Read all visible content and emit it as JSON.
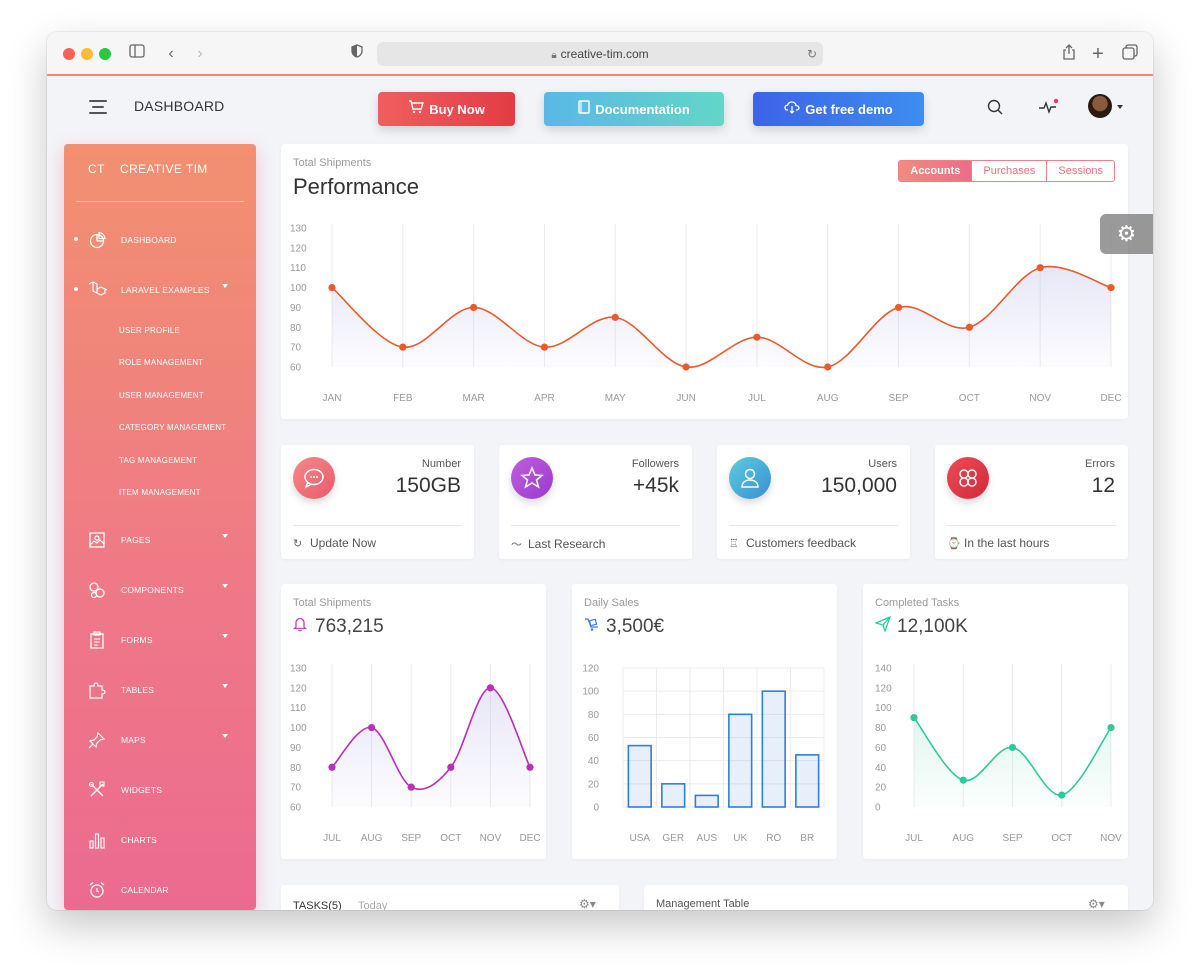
{
  "browser": {
    "url": "creative-tim.com"
  },
  "topnav": {
    "title": "DASHBOARD",
    "buy_now": "Buy Now",
    "documentation": "Documentation",
    "get_free_demo": "Get free demo",
    "colors": {
      "buy": "#e5474b",
      "docs": "#4fc7d9",
      "demo": "#3a6ef0"
    }
  },
  "sidebar": {
    "logo_short": "CT",
    "brand": "CREATIVE TIM",
    "items": [
      {
        "label": "DASHBOARD",
        "icon": "chart-pie-icon",
        "active": true
      },
      {
        "label": "LARAVEL EXAMPLES",
        "icon": "laravel-icon",
        "active": true,
        "expandable": true
      },
      {
        "label": "PAGES",
        "icon": "image-icon",
        "expandable": true
      },
      {
        "label": "COMPONENTS",
        "icon": "components-icon",
        "expandable": true
      },
      {
        "label": "FORMS",
        "icon": "clipboard-icon",
        "expandable": true
      },
      {
        "label": "TABLES",
        "icon": "puzzle-icon",
        "expandable": true
      },
      {
        "label": "MAPS",
        "icon": "pin-icon",
        "expandable": true
      },
      {
        "label": "WIDGETS",
        "icon": "tools-icon"
      },
      {
        "label": "CHARTS",
        "icon": "bar-chart-icon"
      },
      {
        "label": "CALENDAR",
        "icon": "alarm-clock-icon"
      }
    ],
    "subitems": [
      "USER PROFILE",
      "ROLE MANAGEMENT",
      "USER MANAGEMENT",
      "CATEGORY MANAGEMENT",
      "TAG MANAGEMENT",
      "ITEM MANAGEMENT"
    ]
  },
  "performance": {
    "subtitle": "Total Shipments",
    "title": "Performance",
    "tabs": [
      "Accounts",
      "Purchases",
      "Sessions"
    ],
    "active_tab": "Accounts"
  },
  "stats": [
    {
      "label": "Number",
      "value": "150GB",
      "footer": "Update Now",
      "icon": "chat-icon",
      "footer_icon": "refresh-icon",
      "color": "#ee6a78"
    },
    {
      "label": "Followers",
      "value": "+45k",
      "footer": "Last Research",
      "icon": "star-icon",
      "footer_icon": "pulse-icon",
      "color": "#b34fd6"
    },
    {
      "label": "Users",
      "value": "150,000",
      "footer": "Customers feedback",
      "icon": "user-icon",
      "footer_icon": "trophy-icon",
      "color": "#3cb8d6"
    },
    {
      "label": "Errors",
      "value": "12",
      "footer": "In the last hours",
      "icon": "molecule-icon",
      "footer_icon": "watch-icon",
      "color": "#e23a47"
    }
  ],
  "small_cards": [
    {
      "title": "Total Shipments",
      "value": "763,215",
      "icon": "bell-icon",
      "icon_color": "#c33fc0"
    },
    {
      "title": "Daily Sales",
      "value": "3,500€",
      "icon": "delivery-icon",
      "icon_color": "#3a7ae0"
    },
    {
      "title": "Completed Tasks",
      "value": "12,100K",
      "icon": "send-icon",
      "icon_color": "#2fc99b"
    }
  ],
  "bottom": {
    "tasks_title": "TASKS(5)",
    "tasks_tab": "Today",
    "management_title": "Management Table"
  },
  "chart_data": [
    {
      "type": "line",
      "title": "Performance",
      "categories": [
        "JAN",
        "FEB",
        "MAR",
        "APR",
        "MAY",
        "JUN",
        "JUL",
        "AUG",
        "SEP",
        "OCT",
        "NOV",
        "DEC"
      ],
      "series": [
        {
          "values": [
            100,
            70,
            90,
            70,
            85,
            60,
            75,
            60,
            90,
            80,
            110,
            100
          ]
        }
      ],
      "ylim": [
        60,
        130
      ],
      "yticks": [
        60,
        70,
        80,
        90,
        100,
        110,
        120,
        130
      ],
      "color": "#ea5a2c",
      "grid": "vertical"
    },
    {
      "type": "line",
      "categories": [
        "JUL",
        "AUG",
        "SEP",
        "OCT",
        "NOV",
        "DEC"
      ],
      "series": [
        {
          "values": [
            80,
            100,
            70,
            80,
            120,
            80
          ]
        }
      ],
      "ylim": [
        60,
        130
      ],
      "yticks": [
        60,
        70,
        80,
        90,
        100,
        110,
        120,
        130
      ],
      "color": "#b92fb8"
    },
    {
      "type": "bar",
      "categories": [
        "USA",
        "GER",
        "AUS",
        "UK",
        "RO",
        "BR"
      ],
      "series": [
        {
          "values": [
            53,
            20,
            10,
            80,
            100,
            45
          ]
        }
      ],
      "ylim": [
        0,
        120
      ],
      "yticks": [
        0,
        20,
        40,
        60,
        80,
        100,
        120
      ],
      "color": "#2f7fd8"
    },
    {
      "type": "line",
      "categories": [
        "JUL",
        "AUG",
        "SEP",
        "OCT",
        "NOV"
      ],
      "series": [
        {
          "values": [
            90,
            27,
            60,
            12,
            80
          ]
        }
      ],
      "ylim": [
        0,
        140
      ],
      "yticks": [
        0,
        20,
        40,
        60,
        80,
        100,
        120,
        140
      ],
      "color": "#2fc99b"
    }
  ]
}
